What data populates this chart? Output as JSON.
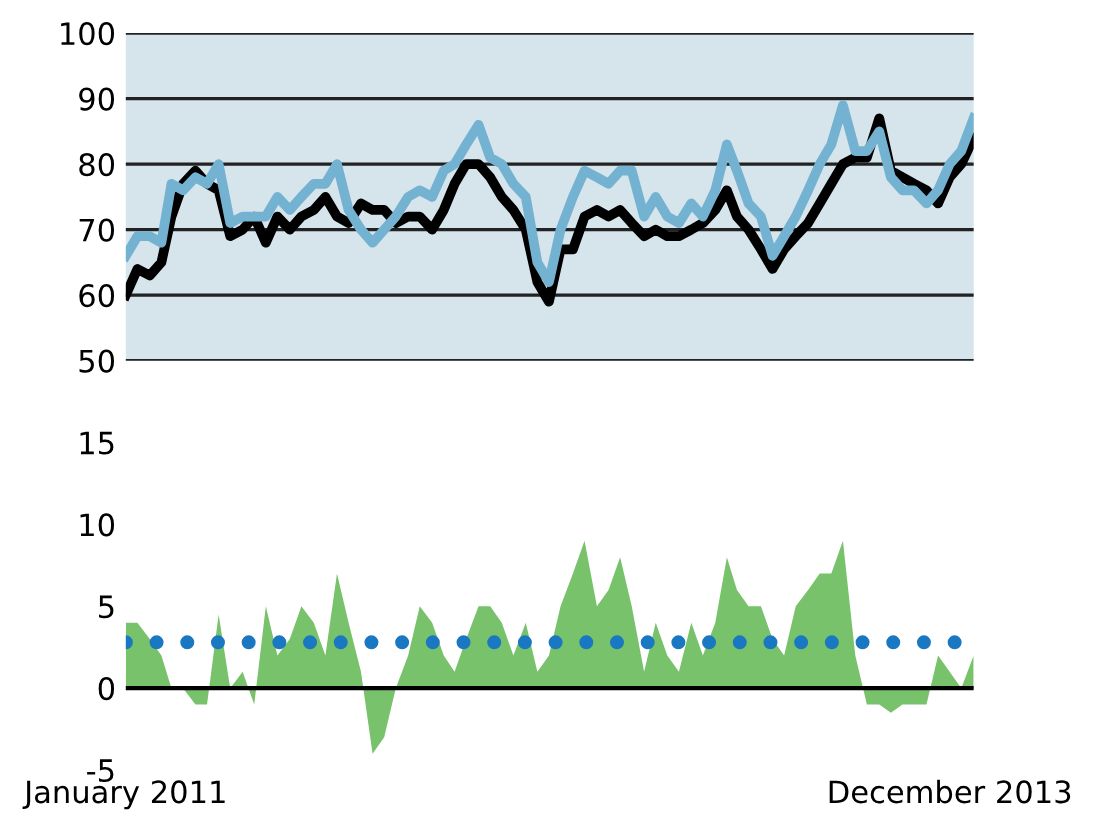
{
  "chart_data": [
    {
      "type": "line",
      "x": [
        "2011-01-01",
        "2011-01-16",
        "2011-02-01",
        "2011-02-16",
        "2011-03-01",
        "2011-03-16",
        "2011-04-01",
        "2011-04-16",
        "2011-05-01",
        "2011-05-16",
        "2011-06-01",
        "2011-06-16",
        "2011-07-01",
        "2011-07-16",
        "2011-08-01",
        "2011-08-16",
        "2011-09-01",
        "2011-09-16",
        "2011-10-01",
        "2011-10-16",
        "2011-11-01",
        "2011-11-16",
        "2011-12-01",
        "2011-12-16",
        "2012-01-01",
        "2012-01-16",
        "2012-02-01",
        "2012-02-16",
        "2012-03-01",
        "2012-03-16",
        "2012-04-01",
        "2012-04-16",
        "2012-05-01",
        "2012-05-16",
        "2012-06-01",
        "2012-06-16",
        "2012-07-01",
        "2012-07-16",
        "2012-08-01",
        "2012-08-16",
        "2012-09-01",
        "2012-09-16",
        "2012-10-01",
        "2012-10-16",
        "2012-11-01",
        "2012-11-16",
        "2012-12-01",
        "2012-12-16",
        "2013-01-01",
        "2013-01-16",
        "2013-02-01",
        "2013-02-16",
        "2013-03-01",
        "2013-03-16",
        "2013-04-01",
        "2013-04-16",
        "2013-05-01",
        "2013-05-16",
        "2013-06-01",
        "2013-06-16",
        "2013-07-01",
        "2013-07-16",
        "2013-08-01",
        "2013-08-16",
        "2013-09-01",
        "2013-09-16",
        "2013-10-01",
        "2013-10-16",
        "2013-11-01",
        "2013-11-16",
        "2013-12-01",
        "2013-12-16",
        "2014-01-01"
      ],
      "series": [
        {
          "color": "#000000",
          "values": [
            60,
            64,
            63,
            65,
            72,
            77,
            79,
            77,
            76,
            69,
            70,
            72,
            68,
            72,
            70,
            72,
            73,
            75,
            72,
            71,
            74,
            73,
            73,
            71,
            72,
            72,
            70,
            73,
            77,
            80,
            80,
            78,
            75,
            73,
            70,
            62,
            59,
            67,
            67,
            72,
            73,
            72,
            73,
            71,
            69,
            70,
            69,
            69,
            70,
            71,
            73,
            76,
            72,
            70,
            67,
            64,
            67,
            69,
            71,
            74,
            77,
            80,
            81,
            81,
            87,
            79,
            78,
            77,
            76,
            74,
            78,
            80,
            84
          ]
        },
        {
          "color": "#73b2d1",
          "values": [
            66,
            69,
            69,
            68,
            77,
            76,
            78,
            77,
            80,
            71,
            72,
            72,
            72,
            75,
            73,
            75,
            77,
            77,
            80,
            73,
            70,
            68,
            70,
            72,
            75,
            76,
            75,
            79,
            80,
            83,
            86,
            81,
            80,
            77,
            75,
            65,
            62,
            70,
            75,
            79,
            78,
            77,
            79,
            79,
            72,
            75,
            72,
            71,
            74,
            72,
            76,
            83,
            79,
            74,
            72,
            66,
            69,
            72,
            76,
            80,
            83,
            89,
            82,
            82,
            85,
            78,
            76,
            76,
            74,
            76,
            80,
            82,
            87
          ]
        }
      ],
      "ylim": [
        50,
        100
      ],
      "yticks": [
        50,
        60,
        70,
        80,
        90,
        100
      ],
      "grid": "y",
      "tick_labels": "y",
      "xlim": [
        "2011-01-01",
        "2014-01-01"
      ]
    },
    {
      "type": "area",
      "x": [
        "2011-01-01",
        "2011-01-16",
        "2011-02-01",
        "2011-02-16",
        "2011-03-01",
        "2011-03-16",
        "2011-04-01",
        "2011-04-16",
        "2011-05-01",
        "2011-05-16",
        "2011-06-01",
        "2011-06-16",
        "2011-07-01",
        "2011-07-16",
        "2011-08-01",
        "2011-08-16",
        "2011-09-01",
        "2011-09-16",
        "2011-10-01",
        "2011-10-16",
        "2011-11-01",
        "2011-11-16",
        "2011-12-01",
        "2011-12-16",
        "2012-01-01",
        "2012-01-16",
        "2012-02-01",
        "2012-02-16",
        "2012-03-01",
        "2012-03-16",
        "2012-04-01",
        "2012-04-16",
        "2012-05-01",
        "2012-05-16",
        "2012-06-01",
        "2012-06-16",
        "2012-07-01",
        "2012-07-16",
        "2012-08-01",
        "2012-08-16",
        "2012-09-01",
        "2012-09-16",
        "2012-10-01",
        "2012-10-16",
        "2012-11-01",
        "2012-11-16",
        "2012-12-01",
        "2012-12-16",
        "2013-01-01",
        "2013-01-16",
        "2013-02-01",
        "2013-02-16",
        "2013-03-01",
        "2013-03-16",
        "2013-04-01",
        "2013-04-16",
        "2013-05-01",
        "2013-05-16",
        "2013-06-01",
        "2013-06-16",
        "2013-07-01",
        "2013-07-16",
        "2013-08-01",
        "2013-08-16",
        "2013-09-01",
        "2013-09-16",
        "2013-10-01",
        "2013-10-16",
        "2013-11-01",
        "2013-11-16",
        "2013-12-01",
        "2013-12-16",
        "2014-01-01"
      ],
      "series": [
        {
          "color": "#77c26b",
          "values": [
            4,
            4,
            3,
            2,
            0,
            0,
            -1,
            -1,
            4.5,
            0,
            1,
            -1,
            5,
            2,
            3,
            5,
            4,
            2,
            7,
            4,
            1,
            -4,
            -3,
            0,
            2,
            5,
            4,
            2,
            1,
            3,
            5,
            5,
            4,
            2,
            4,
            1,
            2,
            5,
            7,
            9,
            5,
            6,
            8,
            5,
            1,
            4,
            2,
            1,
            4,
            2,
            4,
            8,
            6,
            5,
            5,
            3,
            2,
            5,
            6,
            7,
            7,
            9,
            2,
            -1,
            -1,
            -1.5,
            -1,
            -1,
            -1,
            2,
            1,
            0,
            2
          ]
        }
      ],
      "ylim": [
        -5,
        15
      ],
      "yticks": [
        -5,
        0,
        5,
        10,
        15
      ],
      "grid": false,
      "xlim": [
        "2011-01-01",
        "2014-01-01"
      ],
      "xticks": [
        {
          "value": "2011-01-01",
          "label": "January 2011"
        },
        {
          "value": "2013-12-01",
          "label": "December 2013"
        }
      ],
      "ref_lines": [
        {
          "axis": "y",
          "value": 0,
          "color": "#000000",
          "line_style": "solid"
        },
        {
          "axis": "y",
          "value": 2.8,
          "color": "#1a78c2",
          "line_style": "dotted"
        }
      ]
    }
  ]
}
